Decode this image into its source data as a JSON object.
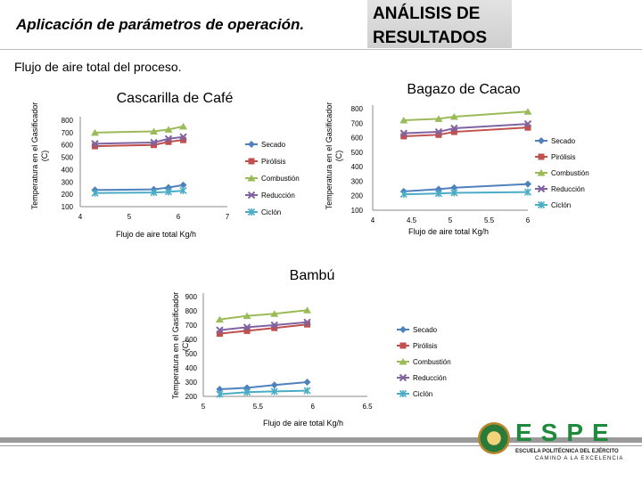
{
  "header": {
    "title": "Aplicación de parámetros de operación.",
    "box_title_line1": "ANÁLISIS DE",
    "box_title_line2": "RESULTADOS",
    "subtitle": "Flujo de aire total del proceso."
  },
  "logo": {
    "name": "ESPE",
    "sub1": "ESCUELA POLITÉCNICA DEL EJÉRCITO",
    "sub2": "CAMINO A LA EXCELENCIA"
  },
  "colors": {
    "Secado": "#4f81bd",
    "Pirólisis": "#c0504d",
    "Combustión": "#9bbb59",
    "Reducción": "#8064a2",
    "Ciclón": "#4bacc6"
  },
  "chart_data": [
    {
      "type": "line",
      "title": "Cascarilla de Café",
      "xlabel": "Flujo de aire total Kg/h",
      "ylabel": "Temperatura en el Gasificador (C)",
      "xlim": [
        4,
        7
      ],
      "ylim": [
        100,
        800
      ],
      "xticks": [
        "4",
        "5",
        "6",
        "7"
      ],
      "yticks": [
        "100",
        "200",
        "300",
        "400",
        "500",
        "600",
        "700",
        "800"
      ],
      "series": [
        {
          "name": "Secado",
          "x": [
            4.3,
            5.5,
            5.8,
            6.1
          ],
          "values": [
            235,
            240,
            255,
            275
          ]
        },
        {
          "name": "Pirólisis",
          "x": [
            4.3,
            5.5,
            5.8,
            6.1
          ],
          "values": [
            590,
            600,
            625,
            640
          ]
        },
        {
          "name": "Combustión",
          "x": [
            4.3,
            5.5,
            5.8,
            6.1
          ],
          "values": [
            700,
            710,
            725,
            750
          ]
        },
        {
          "name": "Reducción",
          "x": [
            4.3,
            5.5,
            5.8,
            6.1
          ],
          "values": [
            610,
            620,
            650,
            665
          ]
        },
        {
          "name": "Ciclón",
          "x": [
            4.3,
            5.5,
            5.8,
            6.1
          ],
          "values": [
            210,
            215,
            220,
            230
          ]
        }
      ]
    },
    {
      "type": "line",
      "title": "Bagazo de Cacao",
      "xlabel": "Flujo de aire total Kg/h",
      "ylabel": "Temperatura en el Gasificador (C)",
      "xlim": [
        4,
        6
      ],
      "ylim": [
        100,
        800
      ],
      "xticks": [
        "4",
        "4.5",
        "5",
        "5.5",
        "6"
      ],
      "yticks": [
        "100",
        "200",
        "300",
        "400",
        "500",
        "600",
        "700",
        "800"
      ],
      "series": [
        {
          "name": "Secado",
          "x": [
            4.4,
            4.85,
            5.05,
            6
          ],
          "values": [
            230,
            245,
            255,
            280
          ]
        },
        {
          "name": "Pirólisis",
          "x": [
            4.4,
            4.85,
            5.05,
            6
          ],
          "values": [
            610,
            620,
            640,
            670
          ]
        },
        {
          "name": "Combustión",
          "x": [
            4.4,
            4.85,
            5.05,
            6
          ],
          "values": [
            720,
            730,
            745,
            780
          ]
        },
        {
          "name": "Reducción",
          "x": [
            4.4,
            4.85,
            5.05,
            6
          ],
          "values": [
            630,
            640,
            665,
            695
          ]
        },
        {
          "name": "Ciclón",
          "x": [
            4.4,
            4.85,
            5.05,
            6
          ],
          "values": [
            210,
            215,
            220,
            225
          ]
        }
      ]
    },
    {
      "type": "line",
      "title": "Bambú",
      "xlabel": "Flujo de aire total Kg/h",
      "ylabel": "Temperatura en el Gasificador (C)",
      "xlim": [
        5,
        6.5
      ],
      "ylim": [
        200,
        900
      ],
      "xticks": [
        "5",
        "5.5",
        "6",
        "6.5"
      ],
      "yticks": [
        "200",
        "300",
        "400",
        "500",
        "600",
        "700",
        "800",
        "900"
      ],
      "series": [
        {
          "name": "Secado",
          "x": [
            5.15,
            5.4,
            5.65,
            5.95
          ],
          "values": [
            250,
            260,
            280,
            300
          ]
        },
        {
          "name": "Pirólisis",
          "x": [
            5.15,
            5.4,
            5.65,
            5.95
          ],
          "values": [
            640,
            660,
            680,
            705
          ]
        },
        {
          "name": "Combustión",
          "x": [
            5.15,
            5.4,
            5.65,
            5.95
          ],
          "values": [
            740,
            765,
            780,
            805
          ]
        },
        {
          "name": "Reducción",
          "x": [
            5.15,
            5.4,
            5.65,
            5.95
          ],
          "values": [
            665,
            685,
            700,
            720
          ]
        },
        {
          "name": "Ciclón",
          "x": [
            5.15,
            5.4,
            5.65,
            5.95
          ],
          "values": [
            215,
            230,
            235,
            240
          ]
        }
      ]
    }
  ]
}
